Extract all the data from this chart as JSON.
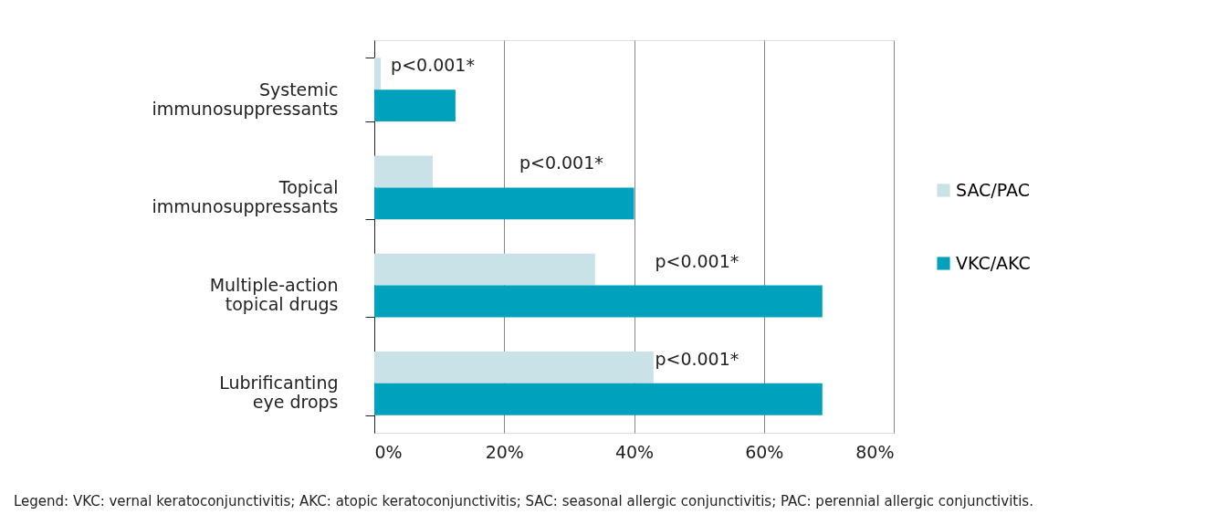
{
  "chart_data": {
    "type": "bar",
    "orientation": "horizontal",
    "categories": [
      "Systemic immunosuppressants",
      "Topical immunosuppressants",
      "Multiple-action topical drugs",
      "Lubrificanting eye drops"
    ],
    "series": [
      {
        "name": "SAC/PAC",
        "color": "#c9e2e8",
        "values": [
          1,
          9,
          34,
          43
        ]
      },
      {
        "name": "VKC/AKC",
        "color": "#00a1bd",
        "values": [
          12.5,
          40,
          69,
          69
        ]
      }
    ],
    "xlim": [
      0,
      80
    ],
    "xticks": [
      {
        "value": 0,
        "label": "0%"
      },
      {
        "value": 20,
        "label": "20%"
      },
      {
        "value": 40,
        "label": "40%"
      },
      {
        "value": 60,
        "label": "60%"
      },
      {
        "value": 80,
        "label": "80%"
      }
    ],
    "grid": "x",
    "legend": "right",
    "annotations": [
      "p<0.001*",
      "p<0.001*",
      "p<0.001*",
      "p<0.001*",
      "Legend: VKC: vernal keratoconjunctivitis; AKC: atopic keratoconjunctivitis; SAC: seasonal allergic conjunctivitis; PAC: perennial allergic conjunctivitis."
    ]
  }
}
